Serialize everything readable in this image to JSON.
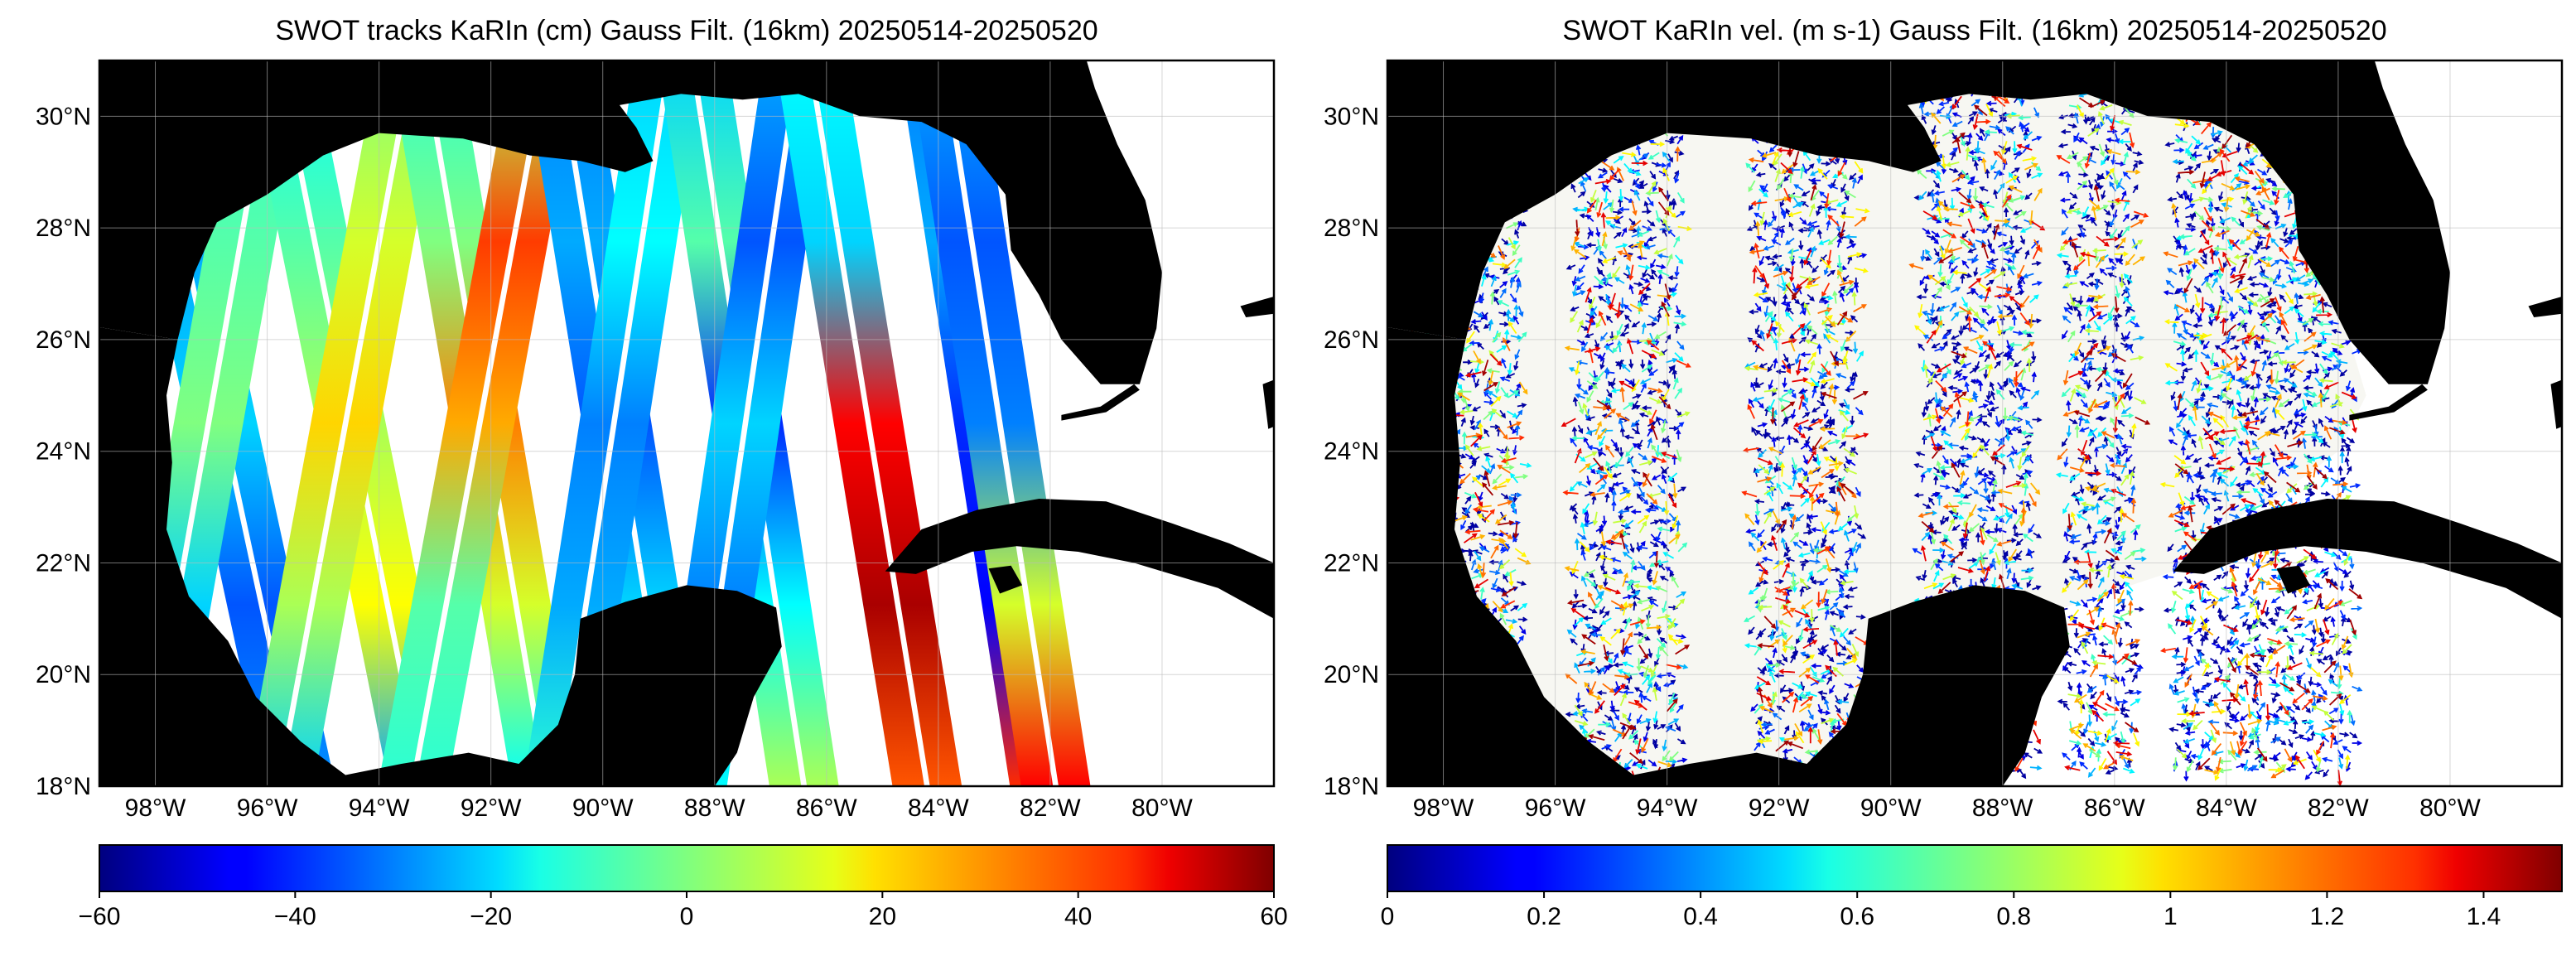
{
  "figure": {
    "panels": [
      {
        "title": "SWOT tracks KaRIn (cm) Gauss Filt. (16km) 20250514-20250520",
        "colorbar": {
          "min": -60,
          "max": 60,
          "ticks": [
            "−60",
            "−40",
            "−20",
            "0",
            "20",
            "40",
            "60"
          ],
          "colormap": "jet"
        }
      },
      {
        "title": "SWOT KaRIn vel. (m s-1) Gauss Filt. (16km) 20250514-20250520",
        "colorbar": {
          "min": 0,
          "max": 1.5,
          "ticks": [
            "0",
            "0.2",
            "0.4",
            "0.6",
            "0.8",
            "1",
            "1.2",
            "1.4"
          ],
          "colormap": "jet"
        }
      }
    ],
    "lon_ticks": [
      "98°W",
      "96°W",
      "94°W",
      "92°W",
      "90°W",
      "88°W",
      "86°W",
      "84°W",
      "82°W",
      "80°W"
    ],
    "lat_ticks": [
      "30°N",
      "28°N",
      "26°N",
      "24°N",
      "22°N",
      "20°N",
      "18°N"
    ],
    "lon_range": [
      -99,
      -78
    ],
    "lat_range": [
      18,
      31
    ],
    "land_color": "#000000",
    "grid": true
  }
}
